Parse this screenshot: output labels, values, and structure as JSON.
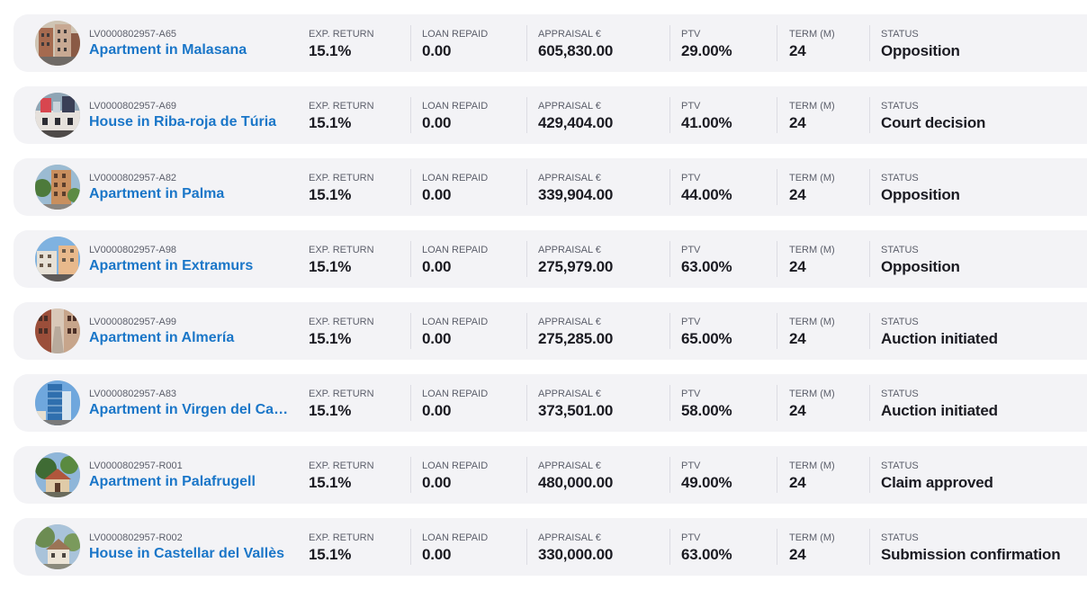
{
  "labels": {
    "exp_return": "EXP. RETURN",
    "loan_repaid": "LOAN REPAID",
    "appraisal": "APPRAISAL €",
    "ptv": "PTV",
    "term": "TERM (M)",
    "status": "STATUS"
  },
  "colors": {
    "row_bg": "#f3f3f6",
    "title": "#1a76c8",
    "value": "#1b1b22",
    "label": "#5b5e6a"
  },
  "rows": [
    {
      "id": "LV0000802957-A65",
      "title": "Apartment in Malasana",
      "exp_return": "15.1%",
      "loan_repaid": "0.00",
      "appraisal": "605,830.00",
      "ptv": "29.00%",
      "term": "24",
      "status": "Opposition",
      "thumb_icon": "building-photo-icon"
    },
    {
      "id": "LV0000802957-A69",
      "title": "House in Riba-roja de Túria",
      "exp_return": "15.1%",
      "loan_repaid": "0.00",
      "appraisal": "429,404.00",
      "ptv": "41.00%",
      "term": "24",
      "status": "Court decision",
      "thumb_icon": "house-photo-icon"
    },
    {
      "id": "LV0000802957-A82",
      "title": "Apartment in Palma",
      "exp_return": "15.1%",
      "loan_repaid": "0.00",
      "appraisal": "339,904.00",
      "ptv": "44.00%",
      "term": "24",
      "status": "Opposition",
      "thumb_icon": "building-photo-icon"
    },
    {
      "id": "LV0000802957-A98",
      "title": "Apartment in Extramurs",
      "exp_return": "15.1%",
      "loan_repaid": "0.00",
      "appraisal": "275,979.00",
      "ptv": "63.00%",
      "term": "24",
      "status": "Opposition",
      "thumb_icon": "building-photo-icon"
    },
    {
      "id": "LV0000802957-A99",
      "title": "Apartment in Almería",
      "exp_return": "15.1%",
      "loan_repaid": "0.00",
      "appraisal": "275,285.00",
      "ptv": "65.00%",
      "term": "24",
      "status": "Auction initiated",
      "thumb_icon": "street-photo-icon"
    },
    {
      "id": "LV0000802957-A83",
      "title": "Apartment in Virgen del Carmen",
      "exp_return": "15.1%",
      "loan_repaid": "0.00",
      "appraisal": "373,501.00",
      "ptv": "58.00%",
      "term": "24",
      "status": "Auction initiated",
      "thumb_icon": "tower-photo-icon"
    },
    {
      "id": "LV0000802957-R001",
      "title": "Apartment in Palafrugell",
      "exp_return": "15.1%",
      "loan_repaid": "0.00",
      "appraisal": "480,000.00",
      "ptv": "49.00%",
      "term": "24",
      "status": "Claim approved",
      "thumb_icon": "house-photo-icon"
    },
    {
      "id": "LV0000802957-R002",
      "title": "House in Castellar del Vallès",
      "exp_return": "15.1%",
      "loan_repaid": "0.00",
      "appraisal": "330,000.00",
      "ptv": "63.00%",
      "term": "24",
      "status": "Submission confirmation",
      "thumb_icon": "house-photo-icon"
    }
  ]
}
